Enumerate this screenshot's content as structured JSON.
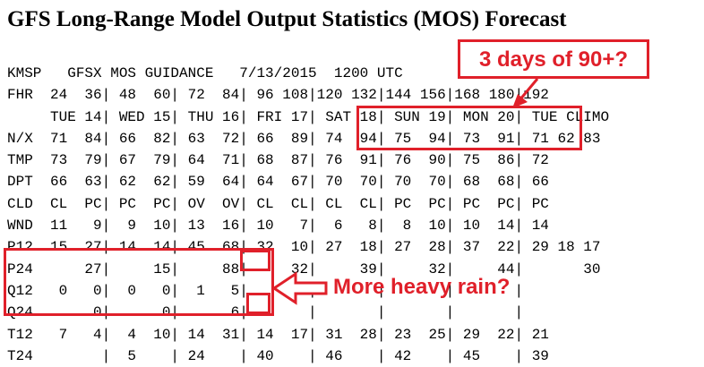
{
  "title": "GFS Long-Range Model Output Statistics (MOS) Forecast",
  "mos_lines": [
    "KMSP   GFSX MOS GUIDANCE   7/13/2015  1200 UTC",
    "FHR  24  36| 48  60| 72  84| 96 108|120 132|144 156|168 180|192",
    "     TUE 14| WED 15| THU 16| FRI 17| SAT 18| SUN 19| MON 20| TUE CLIMO",
    "N/X  71  84| 66  82| 63  72| 66  89| 74  94| 75  94| 73  91| 71 62 83",
    "TMP  73  79| 67  79| 64  71| 68  87| 76  91| 76  90| 75  86| 72",
    "DPT  66  63| 62  62| 59  64| 64  67| 70  70| 70  70| 68  68| 66",
    "CLD  CL  PC| PC  PC| OV  OV| CL  CL| CL  CL| PC  PC| PC  PC| PC",
    "WND  11   9|  9  10| 13  16| 10   7|  6   8|  8  10| 10  14| 14",
    "P12  15  27| 14  14| 45  68| 32  10| 27  18| 27  28| 37  22| 29 18 17",
    "P24      27|     15|     88|     32|     39|     32|     44|       30",
    "Q12   0   0|  0   0|  1   5|       |       |       |       |",
    "Q24       0|      0|      6|       |       |       |       |",
    "T12   7   4|  4  10| 14  31| 14  17| 31  28| 23  25| 29  22| 21",
    "T24        |  5    | 24    | 40    | 46    | 42    | 45    | 39"
  ],
  "annotations": {
    "heat_label": "3 days of 90+?",
    "rain_label": "More heavy rain?"
  },
  "colors": {
    "annotation_red": "#e0202a",
    "text": "#000000",
    "background": "#ffffff"
  }
}
